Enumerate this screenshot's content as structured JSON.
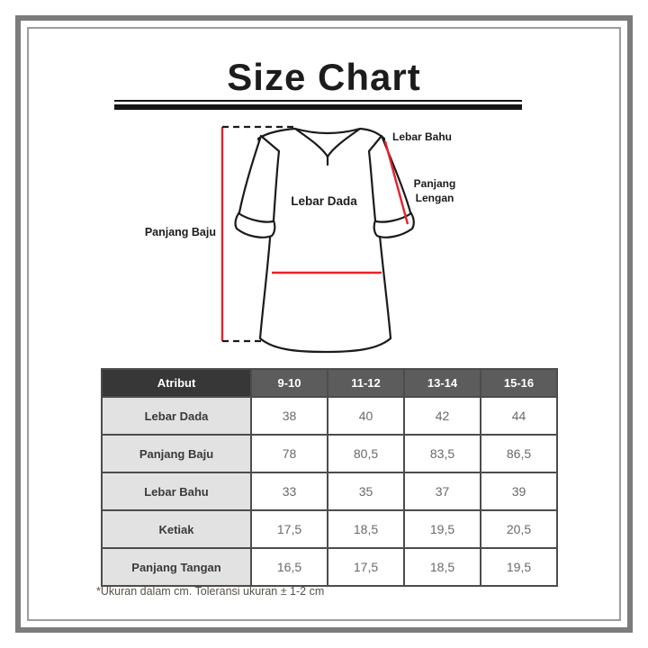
{
  "title": "Size Chart",
  "diagram": {
    "labels": {
      "panjang_baju": "Panjang Baju",
      "lebar_dada": "Lebar Dada",
      "lebar_bahu": "Lebar Bahu",
      "panjang_lengan_line1": "Panjang",
      "panjang_lengan_line2": "Lengan"
    },
    "measure_line_color": "#e8212b",
    "outline_color": "#1b1b1b"
  },
  "table": {
    "columns": [
      "Atribut",
      "9-10",
      "11-12",
      "13-14",
      "15-16"
    ],
    "rows": [
      {
        "label": "Lebar Dada",
        "values": [
          "38",
          "40",
          "42",
          "44"
        ]
      },
      {
        "label": "Panjang Baju",
        "values": [
          "78",
          "80,5",
          "83,5",
          "86,5"
        ]
      },
      {
        "label": "Lebar Bahu",
        "values": [
          "33",
          "35",
          "37",
          "39"
        ]
      },
      {
        "label": "Ketiak",
        "values": [
          "17,5",
          "18,5",
          "19,5",
          "20,5"
        ]
      },
      {
        "label": "Panjang Tangan",
        "values": [
          "16,5",
          "17,5",
          "18,5",
          "19,5"
        ]
      }
    ]
  },
  "footnote": "*Ukuran dalam cm. Toleransi ukuran ± 1-2 cm",
  "colors": {
    "header_attr_bg": "#373737",
    "header_size_bg": "#5c5c5c",
    "row_label_bg": "#e2e2e2",
    "table_border": "#4c4c4c",
    "frame_outer": "#7c7c7c",
    "frame_inner": "#9c9c9c"
  }
}
